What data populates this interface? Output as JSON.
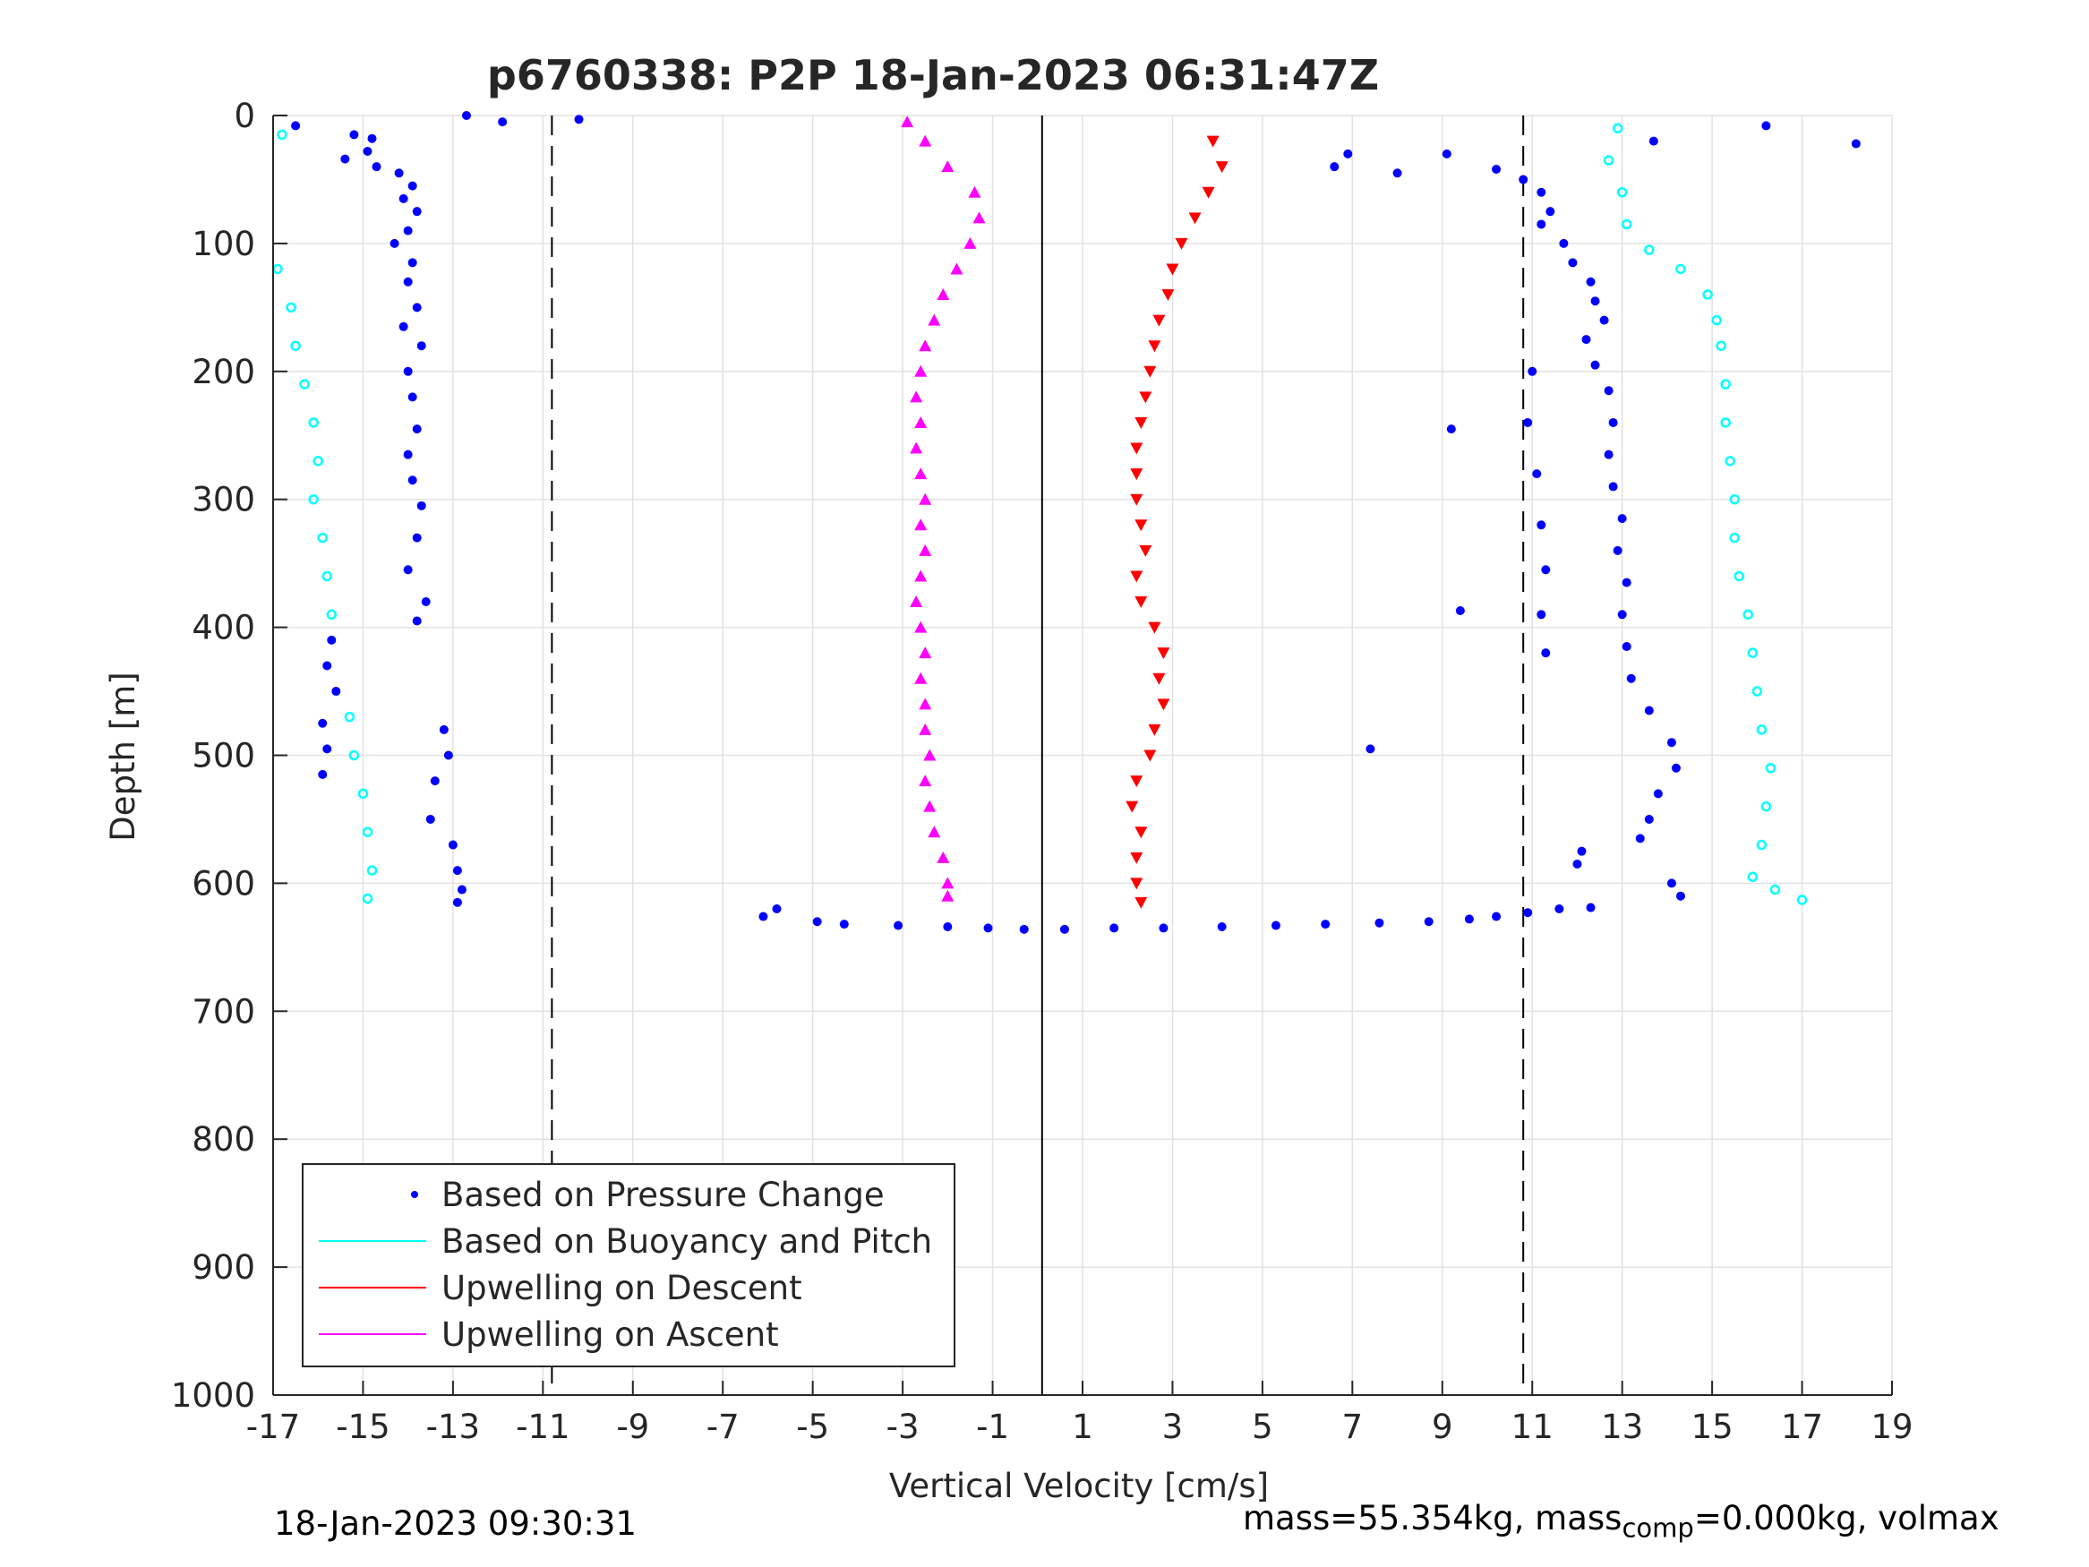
{
  "chart_data": {
    "type": "scatter",
    "title": "p6760338: P2P 18-Jan-2023 06:31:47Z",
    "xlabel": "Vertical Velocity [cm/s]",
    "ylabel": "Depth [m]",
    "xlim": [
      -17,
      19
    ],
    "ylim": [
      0,
      1000
    ],
    "y_reversed": true,
    "grid": true,
    "legend_position": "bottom-left",
    "xticks": [
      -17,
      -15,
      -13,
      -11,
      -9,
      -7,
      -5,
      -3,
      -1,
      1,
      3,
      5,
      7,
      9,
      11,
      13,
      15,
      17,
      19
    ],
    "yticks": [
      0,
      100,
      200,
      300,
      400,
      500,
      600,
      700,
      800,
      900,
      1000
    ],
    "reference_lines": [
      {
        "x": 0.1,
        "style": "solid"
      },
      {
        "x": -10.8,
        "style": "dashed"
      },
      {
        "x": 10.8,
        "style": "dashed"
      }
    ],
    "legend": [
      {
        "label": "Based on Pressure Change",
        "color": "#0000ff",
        "style": "dot"
      },
      {
        "label": "Based on Buoyancy and Pitch",
        "color": "#00ffff",
        "style": "line"
      },
      {
        "label": "Upwelling on Descent",
        "color": "#ff0000",
        "style": "line"
      },
      {
        "label": "Upwelling on Ascent",
        "color": "#ff00ff",
        "style": "line"
      }
    ],
    "series": [
      {
        "name": "Based on Pressure Change",
        "color": "#0000ff",
        "points": [
          [
            -16.5,
            8
          ],
          [
            -15.2,
            15
          ],
          [
            -14.8,
            18
          ],
          [
            -14.9,
            28
          ],
          [
            -15.4,
            34
          ],
          [
            -14.7,
            40
          ],
          [
            -14.2,
            45
          ],
          [
            -13.9,
            55
          ],
          [
            -14.1,
            65
          ],
          [
            -13.8,
            75
          ],
          [
            -14.0,
            90
          ],
          [
            -14.3,
            100
          ],
          [
            -13.9,
            115
          ],
          [
            -14.0,
            130
          ],
          [
            -13.8,
            150
          ],
          [
            -14.1,
            165
          ],
          [
            -13.7,
            180
          ],
          [
            -14.0,
            200
          ],
          [
            -13.9,
            220
          ],
          [
            -13.8,
            245
          ],
          [
            -14.0,
            265
          ],
          [
            -13.9,
            285
          ],
          [
            -13.7,
            305
          ],
          [
            -13.8,
            330
          ],
          [
            -14.0,
            355
          ],
          [
            -13.6,
            380
          ],
          [
            -13.8,
            395
          ],
          [
            -15.7,
            410
          ],
          [
            -15.8,
            430
          ],
          [
            -15.6,
            450
          ],
          [
            -15.9,
            475
          ],
          [
            -15.8,
            495
          ],
          [
            -15.9,
            515
          ],
          [
            -13.2,
            480
          ],
          [
            -13.1,
            500
          ],
          [
            -13.4,
            520
          ],
          [
            -13.5,
            550
          ],
          [
            -13.0,
            570
          ],
          [
            -12.9,
            590
          ],
          [
            -12.8,
            605
          ],
          [
            -12.9,
            615
          ],
          [
            -12.7,
            0
          ],
          [
            -11.9,
            5
          ],
          [
            -10.2,
            3
          ],
          [
            -5.8,
            620
          ],
          [
            -6.1,
            626
          ],
          [
            -4.9,
            630
          ],
          [
            -4.3,
            632
          ],
          [
            -3.1,
            633
          ],
          [
            -2.0,
            634
          ],
          [
            -1.1,
            635
          ],
          [
            -0.3,
            636
          ],
          [
            0.6,
            636
          ],
          [
            1.7,
            635
          ],
          [
            2.8,
            635
          ],
          [
            4.1,
            634
          ],
          [
            5.3,
            633
          ],
          [
            6.4,
            632
          ],
          [
            7.6,
            631
          ],
          [
            8.7,
            630
          ],
          [
            9.6,
            628
          ],
          [
            10.2,
            626
          ],
          [
            10.9,
            623
          ],
          [
            11.6,
            620
          ],
          [
            12.3,
            619
          ],
          [
            9.1,
            30
          ],
          [
            10.2,
            42
          ],
          [
            10.8,
            50
          ],
          [
            11.2,
            60
          ],
          [
            11.4,
            75
          ],
          [
            11.2,
            85
          ],
          [
            11.7,
            100
          ],
          [
            11.9,
            115
          ],
          [
            12.3,
            130
          ],
          [
            12.4,
            145
          ],
          [
            12.6,
            160
          ],
          [
            12.2,
            175
          ],
          [
            12.4,
            195
          ],
          [
            12.7,
            215
          ],
          [
            12.8,
            240
          ],
          [
            12.7,
            265
          ],
          [
            12.8,
            290
          ],
          [
            13.0,
            315
          ],
          [
            12.9,
            340
          ],
          [
            13.1,
            365
          ],
          [
            13.0,
            390
          ],
          [
            13.1,
            415
          ],
          [
            13.2,
            440
          ],
          [
            13.6,
            465
          ],
          [
            14.1,
            490
          ],
          [
            14.2,
            510
          ],
          [
            13.8,
            530
          ],
          [
            13.6,
            550
          ],
          [
            13.4,
            565
          ],
          [
            12.1,
            575
          ],
          [
            12.0,
            585
          ],
          [
            14.1,
            600
          ],
          [
            14.3,
            610
          ],
          [
            11.0,
            200
          ],
          [
            10.9,
            240
          ],
          [
            11.1,
            280
          ],
          [
            11.2,
            320
          ],
          [
            11.3,
            355
          ],
          [
            11.2,
            390
          ],
          [
            11.3,
            420
          ],
          [
            9.2,
            245
          ],
          [
            7.4,
            495
          ],
          [
            8.0,
            45
          ],
          [
            9.4,
            387
          ],
          [
            6.6,
            40
          ],
          [
            6.9,
            30
          ],
          [
            13.7,
            20
          ],
          [
            16.2,
            8
          ],
          [
            18.2,
            22
          ]
        ]
      },
      {
        "name": "Based on Buoyancy and Pitch",
        "color": "#00ffff",
        "points": [
          [
            -16.8,
            15
          ],
          [
            -16.9,
            120
          ],
          [
            -16.6,
            150
          ],
          [
            -16.5,
            180
          ],
          [
            -16.3,
            210
          ],
          [
            -16.1,
            240
          ],
          [
            -16.0,
            270
          ],
          [
            -16.1,
            300
          ],
          [
            -15.9,
            330
          ],
          [
            -15.8,
            360
          ],
          [
            -15.7,
            390
          ],
          [
            -15.3,
            470
          ],
          [
            -15.2,
            500
          ],
          [
            -15.0,
            530
          ],
          [
            -14.9,
            560
          ],
          [
            -14.8,
            590
          ],
          [
            -14.9,
            612
          ],
          [
            12.9,
            10
          ],
          [
            12.7,
            35
          ],
          [
            13.0,
            60
          ],
          [
            13.1,
            85
          ],
          [
            13.6,
            105
          ],
          [
            14.3,
            120
          ],
          [
            14.9,
            140
          ],
          [
            15.1,
            160
          ],
          [
            15.2,
            180
          ],
          [
            15.3,
            210
          ],
          [
            15.3,
            240
          ],
          [
            15.4,
            270
          ],
          [
            15.5,
            300
          ],
          [
            15.5,
            330
          ],
          [
            15.6,
            360
          ],
          [
            15.8,
            390
          ],
          [
            15.9,
            420
          ],
          [
            16.0,
            450
          ],
          [
            16.1,
            480
          ],
          [
            16.3,
            510
          ],
          [
            16.2,
            540
          ],
          [
            16.1,
            570
          ],
          [
            15.9,
            595
          ],
          [
            16.4,
            605
          ],
          [
            17.0,
            613
          ]
        ]
      },
      {
        "name": "Upwelling on Descent",
        "color": "#ff0000",
        "points": [
          [
            3.9,
            20
          ],
          [
            4.1,
            40
          ],
          [
            3.8,
            60
          ],
          [
            3.5,
            80
          ],
          [
            3.2,
            100
          ],
          [
            3.0,
            120
          ],
          [
            2.9,
            140
          ],
          [
            2.7,
            160
          ],
          [
            2.6,
            180
          ],
          [
            2.5,
            200
          ],
          [
            2.4,
            220
          ],
          [
            2.3,
            240
          ],
          [
            2.2,
            260
          ],
          [
            2.2,
            280
          ],
          [
            2.2,
            300
          ],
          [
            2.3,
            320
          ],
          [
            2.4,
            340
          ],
          [
            2.2,
            360
          ],
          [
            2.3,
            380
          ],
          [
            2.6,
            400
          ],
          [
            2.8,
            420
          ],
          [
            2.7,
            440
          ],
          [
            2.8,
            460
          ],
          [
            2.6,
            480
          ],
          [
            2.5,
            500
          ],
          [
            2.2,
            520
          ],
          [
            2.1,
            540
          ],
          [
            2.3,
            560
          ],
          [
            2.2,
            580
          ],
          [
            2.2,
            600
          ],
          [
            2.3,
            615
          ]
        ]
      },
      {
        "name": "Upwelling on Ascent",
        "color": "#ff00ff",
        "points": [
          [
            -2.9,
            5
          ],
          [
            -2.5,
            20
          ],
          [
            -2.0,
            40
          ],
          [
            -1.4,
            60
          ],
          [
            -1.3,
            80
          ],
          [
            -1.5,
            100
          ],
          [
            -1.8,
            120
          ],
          [
            -2.1,
            140
          ],
          [
            -2.3,
            160
          ],
          [
            -2.5,
            180
          ],
          [
            -2.6,
            200
          ],
          [
            -2.7,
            220
          ],
          [
            -2.6,
            240
          ],
          [
            -2.7,
            260
          ],
          [
            -2.6,
            280
          ],
          [
            -2.5,
            300
          ],
          [
            -2.6,
            320
          ],
          [
            -2.5,
            340
          ],
          [
            -2.6,
            360
          ],
          [
            -2.7,
            380
          ],
          [
            -2.6,
            400
          ],
          [
            -2.5,
            420
          ],
          [
            -2.6,
            440
          ],
          [
            -2.5,
            460
          ],
          [
            -2.5,
            480
          ],
          [
            -2.4,
            500
          ],
          [
            -2.5,
            520
          ],
          [
            -2.4,
            540
          ],
          [
            -2.3,
            560
          ],
          [
            -2.1,
            580
          ],
          [
            -2.0,
            600
          ],
          [
            -2.0,
            610
          ]
        ]
      }
    ],
    "footer_left": "18-Jan-2023 09:30:31",
    "footer_right": {
      "a": "mass=55.354kg, mass",
      "sub": "comp",
      "b": "=0.000kg, volmax"
    }
  }
}
